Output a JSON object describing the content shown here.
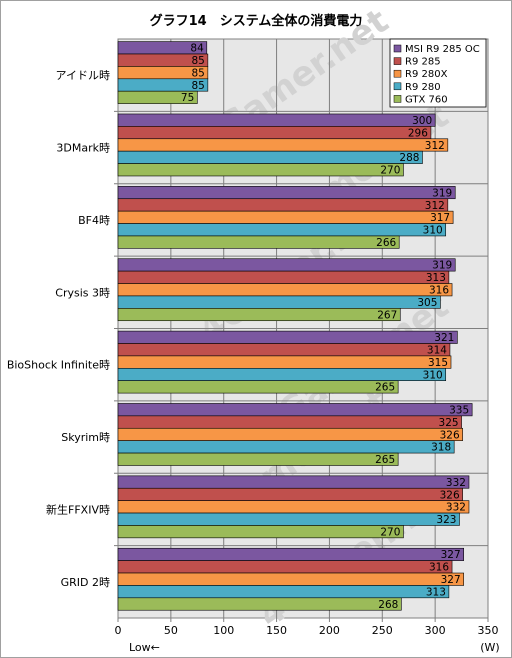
{
  "chart_data": {
    "type": "bar",
    "orientation": "horizontal",
    "title": "グラフ14　システム全体の消費電力",
    "categories": [
      "アイドル時",
      "3DMark時",
      "BF4時",
      "Crysis 3時",
      "BioShock Infinite時",
      "Skyrim時",
      "新生FFXIV時",
      "GRID 2時"
    ],
    "series": [
      {
        "name": "MSI R9 285 OC",
        "color": "#7b57a0",
        "values": [
          84,
          300,
          319,
          319,
          321,
          335,
          332,
          327
        ]
      },
      {
        "name": "R9 285",
        "color": "#c0504d",
        "values": [
          85,
          296,
          312,
          313,
          314,
          325,
          326,
          316
        ]
      },
      {
        "name": "R9 280X",
        "color": "#f79646",
        "values": [
          85,
          312,
          317,
          316,
          315,
          326,
          332,
          327
        ]
      },
      {
        "name": "R9 280",
        "color": "#4bacc6",
        "values": [
          85,
          288,
          310,
          305,
          310,
          318,
          323,
          313
        ]
      },
      {
        "name": "GTX 760",
        "color": "#9bbb59",
        "values": [
          75,
          270,
          266,
          267,
          265,
          265,
          270,
          268
        ]
      }
    ],
    "xlim": [
      0,
      350
    ],
    "xticks": [
      0,
      50,
      100,
      150,
      200,
      250,
      300,
      350
    ],
    "xlabel_left": "Low←",
    "xlabel_right": "(W)",
    "grid": true,
    "legend": "top-right",
    "watermark": "4Gamer.net"
  }
}
